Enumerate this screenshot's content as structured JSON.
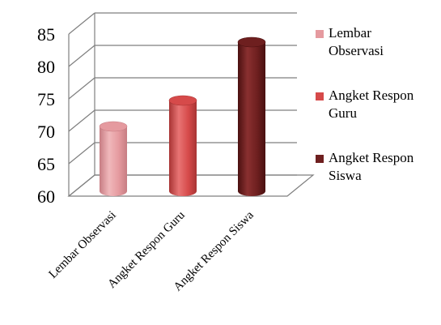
{
  "chart_data": {
    "type": "bar",
    "categories": [
      "Lembar Observasi",
      "Angket Respon Guru",
      "Angket Respon Siswa"
    ],
    "values": [
      71,
      75,
      84
    ],
    "ylim": [
      60,
      85
    ],
    "yticks": [
      60,
      65,
      70,
      75,
      80,
      85
    ],
    "grid": true,
    "legend_position": "right",
    "legend": [
      {
        "lines": [
          "Lembar",
          "Observasi"
        ]
      },
      {
        "lines": [
          "Angket Respon",
          "Guru"
        ]
      },
      {
        "lines": [
          "Angket Respon",
          "Siswa"
        ]
      }
    ],
    "colors": {
      "bars": [
        {
          "light": "#f0b8bb",
          "mid": "#e59a9f",
          "dark": "#c77d83"
        },
        {
          "light": "#e87474",
          "mid": "#d64a4a",
          "dark": "#a83434"
        },
        {
          "light": "#8a3030",
          "mid": "#6e1f1f",
          "dark": "#4a1010"
        }
      ],
      "grid": "#7f7f7f"
    }
  }
}
